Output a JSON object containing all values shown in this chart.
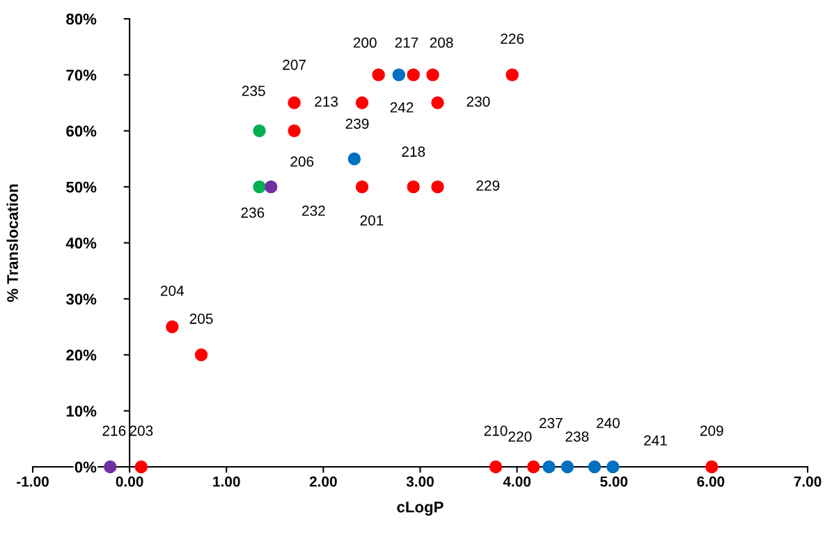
{
  "chart_data": {
    "type": "scatter",
    "xlabel": "cLogP",
    "ylabel": "% Translocation",
    "xlim": [
      -1,
      7
    ],
    "ylim": [
      0,
      0.8
    ],
    "grid": false,
    "marker": "circle",
    "xticks": [
      {
        "value": -1,
        "label": "-1.00"
      },
      {
        "value": 0,
        "label": "0.00"
      },
      {
        "value": 1,
        "label": "1.00"
      },
      {
        "value": 2,
        "label": "2.00"
      },
      {
        "value": 3,
        "label": "3.00"
      },
      {
        "value": 4,
        "label": "4.00"
      },
      {
        "value": 5,
        "label": "5.00"
      },
      {
        "value": 6,
        "label": "6.00"
      },
      {
        "value": 7,
        "label": "7.00"
      }
    ],
    "yticks": [
      {
        "value": 0,
        "label": "0%"
      },
      {
        "value": 0.1,
        "label": "10%"
      },
      {
        "value": 0.2,
        "label": "20%"
      },
      {
        "value": 0.3,
        "label": "30%"
      },
      {
        "value": 0.4,
        "label": "40%"
      },
      {
        "value": 0.5,
        "label": "50%"
      },
      {
        "value": 0.6,
        "label": "60%"
      },
      {
        "value": 0.7,
        "label": "70%"
      },
      {
        "value": 0.8,
        "label": "80%"
      }
    ],
    "series": [
      {
        "type": "scatter",
        "color": "#ff0000",
        "x": [
          0.12,
          0.44,
          0.74,
          1.7,
          1.7,
          2.4,
          2.4,
          2.57,
          2.93,
          3.13,
          3.18,
          2.93,
          3.18,
          3.95,
          3.78,
          4.17,
          6.01
        ],
        "values": [
          0,
          0.25,
          0.2,
          0.65,
          0.6,
          0.65,
          0.5,
          0.7,
          0.7,
          0.7,
          0.65,
          0.5,
          0.5,
          0.7,
          0,
          0,
          0
        ]
      },
      {
        "type": "scatter",
        "color": "#0070c0",
        "x": [
          2.78,
          2.32,
          4.33,
          4.52,
          4.8,
          4.99
        ],
        "values": [
          0.7,
          0.55,
          0,
          0,
          0,
          0
        ]
      },
      {
        "type": "scatter",
        "color": "#00b050",
        "x": [
          1.34,
          1.34
        ],
        "values": [
          0.6,
          0.5
        ]
      },
      {
        "type": "scatter",
        "color": "#7030a0",
        "x": [
          1.46,
          -0.2
        ],
        "values": [
          0.5,
          0
        ]
      }
    ],
    "annotations": [
      {
        "text": "203",
        "x": 0.12,
        "y": 0
      },
      {
        "text": "204",
        "x": 0.44,
        "y": 0.25
      },
      {
        "text": "205",
        "x": 0.74,
        "y": 0.2
      },
      {
        "text": "207",
        "x": 1.7,
        "y": 0.65
      },
      {
        "text": "206",
        "x": 1.7,
        "y": 0.6
      },
      {
        "text": "213",
        "x": 2.4,
        "y": 0.65
      },
      {
        "text": "201",
        "x": 2.4,
        "y": 0.5
      },
      {
        "text": "200",
        "x": 2.57,
        "y": 0.7
      },
      {
        "text": "217",
        "x": 2.93,
        "y": 0.7
      },
      {
        "text": "208",
        "x": 3.13,
        "y": 0.7
      },
      {
        "text": "230",
        "x": 3.18,
        "y": 0.65
      },
      {
        "text": "218",
        "x": 2.93,
        "y": 0.5
      },
      {
        "text": "229",
        "x": 3.18,
        "y": 0.5
      },
      {
        "text": "226",
        "x": 3.95,
        "y": 0.7
      },
      {
        "text": "210",
        "x": 3.78,
        "y": 0
      },
      {
        "text": "220",
        "x": 4.17,
        "y": 0
      },
      {
        "text": "209",
        "x": 6.01,
        "y": 0
      },
      {
        "text": "242",
        "x": 2.78,
        "y": 0.7
      },
      {
        "text": "239",
        "x": 2.32,
        "y": 0.55
      },
      {
        "text": "237",
        "x": 4.33,
        "y": 0
      },
      {
        "text": "238",
        "x": 4.52,
        "y": 0
      },
      {
        "text": "240",
        "x": 4.8,
        "y": 0
      },
      {
        "text": "241",
        "x": 4.99,
        "y": 0
      },
      {
        "text": "235",
        "x": 1.34,
        "y": 0.6
      },
      {
        "text": "236",
        "x": 1.34,
        "y": 0.5
      },
      {
        "text": "232",
        "x": 1.46,
        "y": 0.5
      },
      {
        "text": "216",
        "x": -0.2,
        "y": 0
      }
    ]
  }
}
